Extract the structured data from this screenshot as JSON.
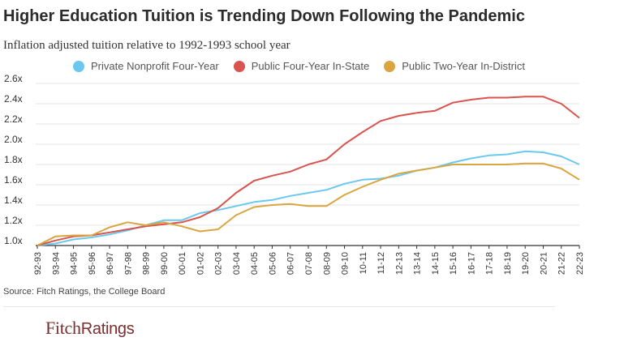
{
  "title": "Higher Education Tuition is Trending Down Following the Pandemic",
  "subtitle": "Inflation adjusted tuition relative to 1992-1993 school year",
  "source": "Source: Fitch Ratings, the College Board",
  "logo": {
    "text": "FitchRatings"
  },
  "colors": {
    "private": "#6ac8ef",
    "public4": "#d9534f",
    "public2": "#d9a53f",
    "grid": "#e6e6e6",
    "axis": "#333333"
  },
  "chart_data": {
    "type": "line",
    "title": "Higher Education Tuition is Trending Down Following the Pandemic",
    "subtitle": "Inflation adjusted tuition relative to 1992-1993 school year",
    "xlabel": "",
    "ylabel": "",
    "grid": true,
    "legend_position": "top",
    "ylim": [
      1.0,
      2.6
    ],
    "y_ticks": [
      "1.0x",
      "1.2x",
      "1.4x",
      "1.6x",
      "1.8x",
      "2.0x",
      "2.2x",
      "2.4x",
      "2.6x"
    ],
    "categories": [
      "92-93",
      "93-94",
      "94-95",
      "95-96",
      "96-97",
      "97-98",
      "98-99",
      "99-00",
      "00-01",
      "01-02",
      "02-03",
      "03-04",
      "04-05",
      "05-06",
      "06-07",
      "07-08",
      "08-09",
      "09-10",
      "10-11",
      "11-12",
      "12-13",
      "13-14",
      "14-15",
      "15-16",
      "16-17",
      "17-18",
      "18-19",
      "19-20",
      "20-21",
      "21-22",
      "22-23"
    ],
    "series": [
      {
        "name": "Private Nonprofit Four-Year",
        "color": "#6ac8ef",
        "values": [
          1.0,
          1.02,
          1.06,
          1.08,
          1.11,
          1.15,
          1.2,
          1.25,
          1.25,
          1.32,
          1.35,
          1.39,
          1.43,
          1.45,
          1.49,
          1.52,
          1.55,
          1.61,
          1.65,
          1.66,
          1.69,
          1.74,
          1.77,
          1.82,
          1.86,
          1.89,
          1.9,
          1.93,
          1.92,
          1.88,
          1.8
        ]
      },
      {
        "name": "Public Four-Year In-State",
        "color": "#d9534f",
        "values": [
          1.0,
          1.05,
          1.09,
          1.1,
          1.13,
          1.16,
          1.19,
          1.21,
          1.23,
          1.28,
          1.37,
          1.52,
          1.64,
          1.69,
          1.73,
          1.8,
          1.85,
          2.0,
          2.12,
          2.23,
          2.28,
          2.31,
          2.33,
          2.41,
          2.44,
          2.46,
          2.46,
          2.47,
          2.47,
          2.4,
          2.26
        ]
      },
      {
        "name": "Public Two-Year In-District",
        "color": "#d9a53f",
        "values": [
          1.0,
          1.09,
          1.1,
          1.1,
          1.18,
          1.23,
          1.2,
          1.23,
          1.19,
          1.14,
          1.16,
          1.3,
          1.38,
          1.4,
          1.41,
          1.39,
          1.39,
          1.5,
          1.58,
          1.65,
          1.71,
          1.74,
          1.77,
          1.8,
          1.8,
          1.8,
          1.8,
          1.81,
          1.81,
          1.76,
          1.65
        ]
      }
    ]
  }
}
